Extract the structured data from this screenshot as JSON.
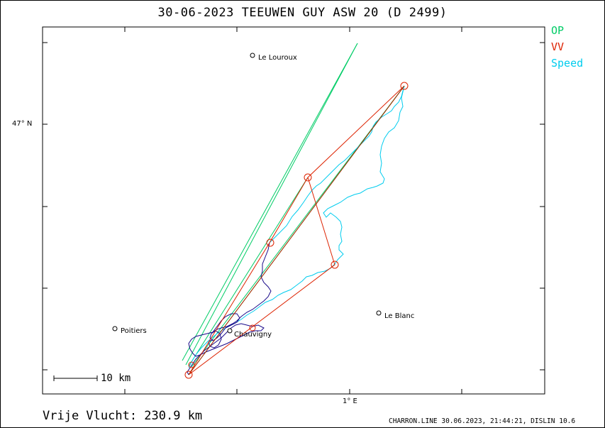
{
  "header": {
    "title": "30-06-2023   TEEUWEN GUY   ASW 20 (D 2499)"
  },
  "legend": [
    {
      "label": "OP",
      "color": "#00cc66"
    },
    {
      "label": "VV",
      "color": "#dd2200"
    },
    {
      "label": "Speed",
      "color": "#00ccee"
    }
  ],
  "axes": {
    "lat_label": "47° N",
    "lon_label": "1° E"
  },
  "places": [
    {
      "name": "Le Louroux"
    },
    {
      "name": "Poitiers"
    },
    {
      "name": "Chauvigny"
    },
    {
      "name": "Le Blanc"
    }
  ],
  "scale": {
    "label": "10 km"
  },
  "footer": {
    "distance": "Vrije Vlucht:  230.9 km",
    "info": "CHARRON.LINE 30.06.2023, 21:44:21, DISLIN 10.6"
  },
  "colors": {
    "track_low": "#1a0a8a",
    "track_high": "#00ccee",
    "op_line": "#00cc66",
    "vv_line": "#dd2200",
    "turnpoint": "#dd2200"
  }
}
